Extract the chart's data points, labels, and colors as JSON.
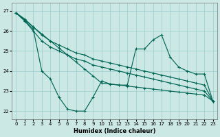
{
  "xlabel": "Humidex (Indice chaleur)",
  "bg_color": "#cce8e4",
  "grid_color": "#99cccc",
  "line_color": "#006655",
  "xlim": [
    -0.5,
    23.5
  ],
  "ylim": [
    21.6,
    27.4
  ],
  "yticks": [
    22,
    23,
    24,
    25,
    26,
    27
  ],
  "xticks": [
    0,
    1,
    2,
    3,
    4,
    5,
    6,
    7,
    8,
    9,
    10,
    11,
    12,
    13,
    14,
    15,
    16,
    17,
    18,
    19,
    20,
    21,
    22,
    23
  ],
  "line_upper1_x": [
    0,
    1,
    2,
    3,
    4,
    5,
    6,
    7,
    8,
    9,
    10,
    11,
    12,
    13,
    14,
    15,
    16,
    17,
    18,
    19,
    20,
    21,
    22,
    23
  ],
  "line_upper1_y": [
    26.9,
    26.6,
    26.2,
    25.8,
    25.5,
    25.3,
    25.1,
    24.9,
    24.8,
    24.6,
    24.5,
    24.4,
    24.3,
    24.2,
    24.1,
    24.0,
    23.9,
    23.8,
    23.7,
    23.6,
    23.5,
    23.4,
    23.3,
    22.5
  ],
  "line_upper2_x": [
    0,
    1,
    2,
    3,
    4,
    5,
    6,
    7,
    8,
    9,
    10,
    11,
    12,
    13,
    14,
    15,
    16,
    17,
    18,
    19,
    20,
    21,
    22,
    23
  ],
  "line_upper2_y": [
    26.9,
    26.5,
    26.0,
    25.5,
    25.2,
    25.0,
    24.8,
    24.6,
    24.5,
    24.3,
    24.2,
    24.1,
    24.0,
    23.9,
    23.8,
    23.7,
    23.6,
    23.5,
    23.4,
    23.3,
    23.2,
    23.1,
    23.0,
    22.5
  ],
  "line_zigzag_x": [
    0,
    1,
    2,
    3,
    4,
    5,
    6,
    7,
    8,
    9,
    10,
    11,
    12,
    13,
    14,
    15,
    16,
    17,
    18,
    19,
    20,
    21,
    22,
    23
  ],
  "line_zigzag_y": [
    26.9,
    26.5,
    26.1,
    24.0,
    23.6,
    22.7,
    22.1,
    22.0,
    22.0,
    22.7,
    23.5,
    23.35,
    23.3,
    23.3,
    25.1,
    25.1,
    25.55,
    25.8,
    24.7,
    24.2,
    24.0,
    23.85,
    23.85,
    22.5
  ],
  "line_diag_x": [
    0,
    1,
    2,
    3,
    4,
    5,
    6,
    7,
    8,
    9,
    10,
    11,
    12,
    13,
    14,
    15,
    16,
    17,
    18,
    19,
    20,
    21,
    22,
    23
  ],
  "line_diag_y": [
    26.9,
    26.55,
    26.2,
    25.85,
    25.5,
    25.15,
    24.8,
    24.45,
    24.1,
    23.75,
    23.4,
    23.35,
    23.3,
    23.25,
    23.2,
    23.15,
    23.1,
    23.05,
    23.0,
    22.95,
    22.9,
    22.85,
    22.8,
    22.5
  ]
}
